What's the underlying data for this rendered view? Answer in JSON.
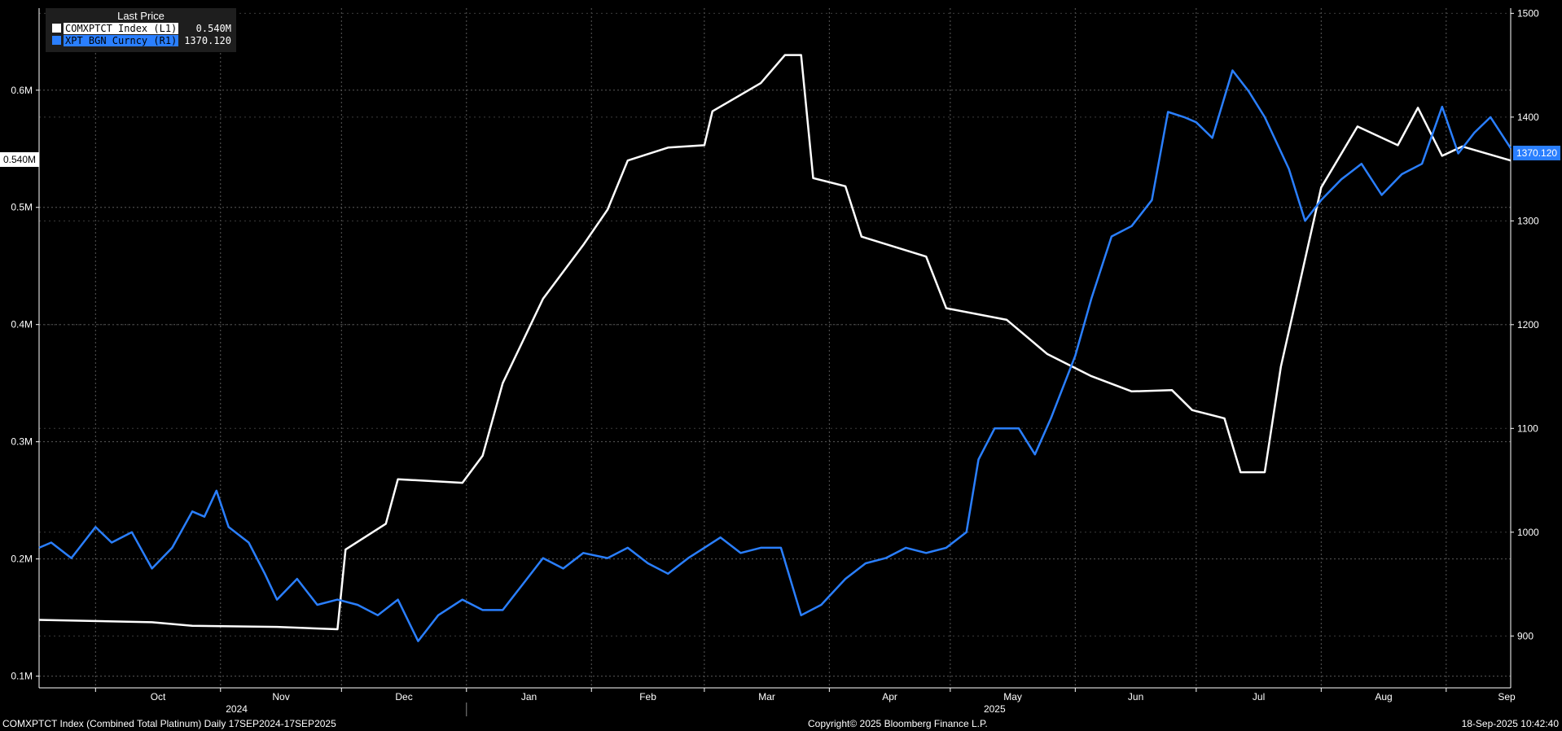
{
  "legend": {
    "title": "Last Price",
    "items": [
      {
        "name": "COMXPTCT Index  (L1)",
        "value": "0.540M",
        "color": "#ffffff"
      },
      {
        "name": "XPT BGN Curncy  (R1)",
        "value": "1370.120",
        "color": "#2a7fff"
      }
    ]
  },
  "last_value_tags": {
    "left": "0.540M",
    "right": "1370.120"
  },
  "footer": {
    "left": "COMXPTCT Index (Combined Total Platinum)  Daily 17SEP2024-17SEP2025",
    "center": "Copyright© 2025 Bloomberg Finance L.P.",
    "right": "18-Sep-2025 10:42:40"
  },
  "chart_data": {
    "type": "line",
    "x_axis": {
      "months": [
        "Oct",
        "Nov",
        "Dec",
        "Jan",
        "Feb",
        "Mar",
        "Apr",
        "May",
        "Jun",
        "Jul",
        "Aug",
        "Sep"
      ],
      "years": [
        "2024",
        "2025"
      ]
    },
    "y_left": {
      "ticks": [
        "0.1M",
        "0.2M",
        "0.3M",
        "0.4M",
        "0.5M",
        "0.6M"
      ],
      "range": [
        0.09,
        0.67
      ],
      "unit": "M"
    },
    "y_right": {
      "ticks": [
        "900",
        "1000",
        "1100",
        "1200",
        "1300",
        "1400",
        "1500"
      ],
      "range": [
        850,
        1505
      ]
    },
    "grid": true,
    "legend_position": "top-left",
    "series": [
      {
        "name": "COMXPTCT Index",
        "axis": "left",
        "color": "#ffffff",
        "points": [
          [
            "2024-09-17",
            0.148
          ],
          [
            "2024-10-15",
            0.146
          ],
          [
            "2024-10-25",
            0.143
          ],
          [
            "2024-11-15",
            0.142
          ],
          [
            "2024-11-30",
            0.14
          ],
          [
            "2024-12-02",
            0.208
          ],
          [
            "2024-12-12",
            0.23
          ],
          [
            "2024-12-15",
            0.268
          ],
          [
            "2024-12-31",
            0.265
          ],
          [
            "2025-01-05",
            0.288
          ],
          [
            "2025-01-10",
            0.35
          ],
          [
            "2025-01-20",
            0.422
          ],
          [
            "2025-01-30",
            0.468
          ],
          [
            "2025-02-05",
            0.498
          ],
          [
            "2025-02-10",
            0.54
          ],
          [
            "2025-02-20",
            0.551
          ],
          [
            "2025-03-01",
            0.553
          ],
          [
            "2025-03-03",
            0.582
          ],
          [
            "2025-03-15",
            0.606
          ],
          [
            "2025-03-21",
            0.63
          ],
          [
            "2025-03-25",
            0.63
          ],
          [
            "2025-03-28",
            0.525
          ],
          [
            "2025-04-05",
            0.518
          ],
          [
            "2025-04-09",
            0.475
          ],
          [
            "2025-04-25",
            0.458
          ],
          [
            "2025-04-30",
            0.414
          ],
          [
            "2025-05-15",
            0.404
          ],
          [
            "2025-05-25",
            0.375
          ],
          [
            "2025-06-05",
            0.356
          ],
          [
            "2025-06-15",
            0.343
          ],
          [
            "2025-06-25",
            0.344
          ],
          [
            "2025-06-30",
            0.327
          ],
          [
            "2025-07-08",
            0.32
          ],
          [
            "2025-07-12",
            0.274
          ],
          [
            "2025-07-18",
            0.274
          ],
          [
            "2025-07-22",
            0.364
          ],
          [
            "2025-07-26",
            0.425
          ],
          [
            "2025-08-01",
            0.517
          ],
          [
            "2025-08-10",
            0.569
          ],
          [
            "2025-08-20",
            0.553
          ],
          [
            "2025-08-25",
            0.585
          ],
          [
            "2025-08-31",
            0.544
          ],
          [
            "2025-09-05",
            0.552
          ],
          [
            "2025-09-17",
            0.54
          ]
        ]
      },
      {
        "name": "XPT BGN Curncy",
        "axis": "right",
        "color": "#2a7fff",
        "points": [
          [
            "2024-09-17",
            985
          ],
          [
            "2024-09-20",
            990
          ],
          [
            "2024-09-25",
            975
          ],
          [
            "2024-10-01",
            1005
          ],
          [
            "2024-10-05",
            990
          ],
          [
            "2024-10-10",
            1000
          ],
          [
            "2024-10-15",
            965
          ],
          [
            "2024-10-20",
            985
          ],
          [
            "2024-10-25",
            1020
          ],
          [
            "2024-10-28",
            1015
          ],
          [
            "2024-10-31",
            1040
          ],
          [
            "2024-11-03",
            1005
          ],
          [
            "2024-11-08",
            990
          ],
          [
            "2024-11-12",
            960
          ],
          [
            "2024-11-15",
            935
          ],
          [
            "2024-11-20",
            955
          ],
          [
            "2024-11-25",
            930
          ],
          [
            "2024-11-30",
            935
          ],
          [
            "2024-12-05",
            930
          ],
          [
            "2024-12-10",
            920
          ],
          [
            "2024-12-15",
            935
          ],
          [
            "2024-12-20",
            895
          ],
          [
            "2024-12-25",
            920
          ],
          [
            "2024-12-31",
            935
          ],
          [
            "2025-01-05",
            925
          ],
          [
            "2025-01-10",
            925
          ],
          [
            "2025-01-15",
            950
          ],
          [
            "2025-01-20",
            975
          ],
          [
            "2025-01-25",
            965
          ],
          [
            "2025-01-30",
            980
          ],
          [
            "2025-02-05",
            975
          ],
          [
            "2025-02-10",
            985
          ],
          [
            "2025-02-15",
            970
          ],
          [
            "2025-02-20",
            960
          ],
          [
            "2025-02-25",
            975
          ],
          [
            "2025-03-01",
            985
          ],
          [
            "2025-03-05",
            995
          ],
          [
            "2025-03-10",
            980
          ],
          [
            "2025-03-15",
            985
          ],
          [
            "2025-03-20",
            985
          ],
          [
            "2025-03-25",
            920
          ],
          [
            "2025-03-30",
            930
          ],
          [
            "2025-04-05",
            955
          ],
          [
            "2025-04-10",
            970
          ],
          [
            "2025-04-15",
            975
          ],
          [
            "2025-04-20",
            985
          ],
          [
            "2025-04-25",
            980
          ],
          [
            "2025-04-30",
            985
          ],
          [
            "2025-05-05",
            1000
          ],
          [
            "2025-05-08",
            1070
          ],
          [
            "2025-05-12",
            1100
          ],
          [
            "2025-05-18",
            1100
          ],
          [
            "2025-05-22",
            1075
          ],
          [
            "2025-05-26",
            1110
          ],
          [
            "2025-06-01",
            1170
          ],
          [
            "2025-06-05",
            1225
          ],
          [
            "2025-06-10",
            1285
          ],
          [
            "2025-06-15",
            1295
          ],
          [
            "2025-06-20",
            1320
          ],
          [
            "2025-06-24",
            1405
          ],
          [
            "2025-06-28",
            1400
          ],
          [
            "2025-07-01",
            1395
          ],
          [
            "2025-07-05",
            1380
          ],
          [
            "2025-07-10",
            1445
          ],
          [
            "2025-07-14",
            1425
          ],
          [
            "2025-07-18",
            1400
          ],
          [
            "2025-07-24",
            1350
          ],
          [
            "2025-07-28",
            1300
          ],
          [
            "2025-08-01",
            1320
          ],
          [
            "2025-08-06",
            1340
          ],
          [
            "2025-08-11",
            1355
          ],
          [
            "2025-08-16",
            1325
          ],
          [
            "2025-08-21",
            1345
          ],
          [
            "2025-08-26",
            1355
          ],
          [
            "2025-08-31",
            1410
          ],
          [
            "2025-09-04",
            1365
          ],
          [
            "2025-09-08",
            1385
          ],
          [
            "2025-09-12",
            1400
          ],
          [
            "2025-09-17",
            1370
          ]
        ]
      }
    ]
  }
}
